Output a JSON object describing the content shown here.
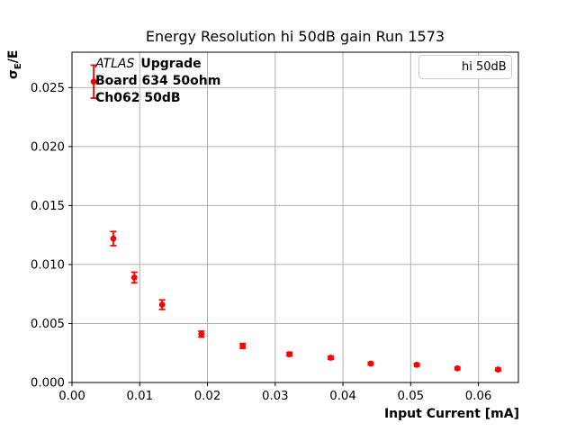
{
  "chart_data": {
    "type": "scatter",
    "title": "Energy Resolution hi 50dB gain Run 1573",
    "xlabel": "Input Current [mA]",
    "ylabel": "σE/E",
    "ylabel_parts": {
      "sigma": "σ",
      "subscript": "E",
      "rest": "/E"
    },
    "xlim": [
      0,
      0.0659
    ],
    "ylim": [
      0,
      0.028
    ],
    "x_ticks": [
      0.0,
      0.01,
      0.02,
      0.03,
      0.04,
      0.05,
      0.06
    ],
    "x_tick_labels": [
      "0.00",
      "0.01",
      "0.02",
      "0.03",
      "0.04",
      "0.05",
      "0.06"
    ],
    "y_ticks": [
      0.0,
      0.005,
      0.01,
      0.015,
      0.02,
      0.025
    ],
    "y_tick_labels": [
      "0.000",
      "0.005",
      "0.010",
      "0.015",
      "0.020",
      "0.025"
    ],
    "grid": true,
    "grid_color": "#b0b0b0",
    "legend_position": "upper right",
    "series": [
      {
        "name": "hi 50dB",
        "color": "#ff0000",
        "marker": "circle-with-errorbars",
        "x": [
          0.0032,
          0.0061,
          0.0092,
          0.0133,
          0.0191,
          0.0252,
          0.0321,
          0.0382,
          0.0441,
          0.0509,
          0.0569,
          0.0629
        ],
        "y": [
          0.0255,
          0.0122,
          0.0089,
          0.0066,
          0.0041,
          0.0031,
          0.0024,
          0.0021,
          0.0016,
          0.0015,
          0.0012,
          0.0011
        ],
        "yerr": [
          0.0014,
          0.0006,
          0.00045,
          0.0004,
          0.00025,
          0.0002,
          0.00015,
          0.00013,
          0.00012,
          0.00011,
          0.0001,
          0.0001
        ]
      }
    ],
    "annotation": {
      "line1_italic": "ATLAS",
      "line1_bold": "Upgrade",
      "line2": "Board 634 50ohm",
      "line3": "Ch062 50dB"
    }
  }
}
